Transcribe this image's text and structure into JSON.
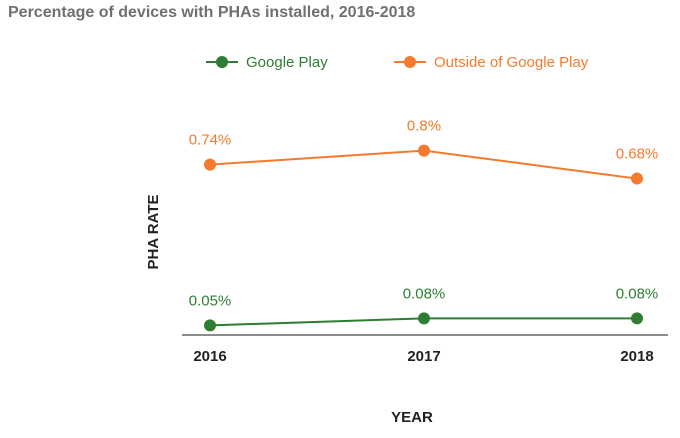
{
  "chart_data": {
    "type": "line",
    "title": "Percentage of devices with PHAs installed, 2016-2018",
    "xlabel": "YEAR",
    "ylabel": "PHA RATE",
    "categories": [
      "2016",
      "2017",
      "2018"
    ],
    "ylim": [
      0,
      0.85
    ],
    "grid": false,
    "legend_position": "top-center",
    "series": [
      {
        "name": "Google Play",
        "color": "#2e7d32",
        "values": [
          0.05,
          0.08,
          0.08
        ],
        "labels": [
          "0.05%",
          "0.08%",
          "0.08%"
        ]
      },
      {
        "name": "Outside of Google Play",
        "color": "#f47a2e",
        "values": [
          0.74,
          0.8,
          0.68
        ],
        "labels": [
          "0.74%",
          "0.8%",
          "0.68%"
        ]
      }
    ]
  }
}
